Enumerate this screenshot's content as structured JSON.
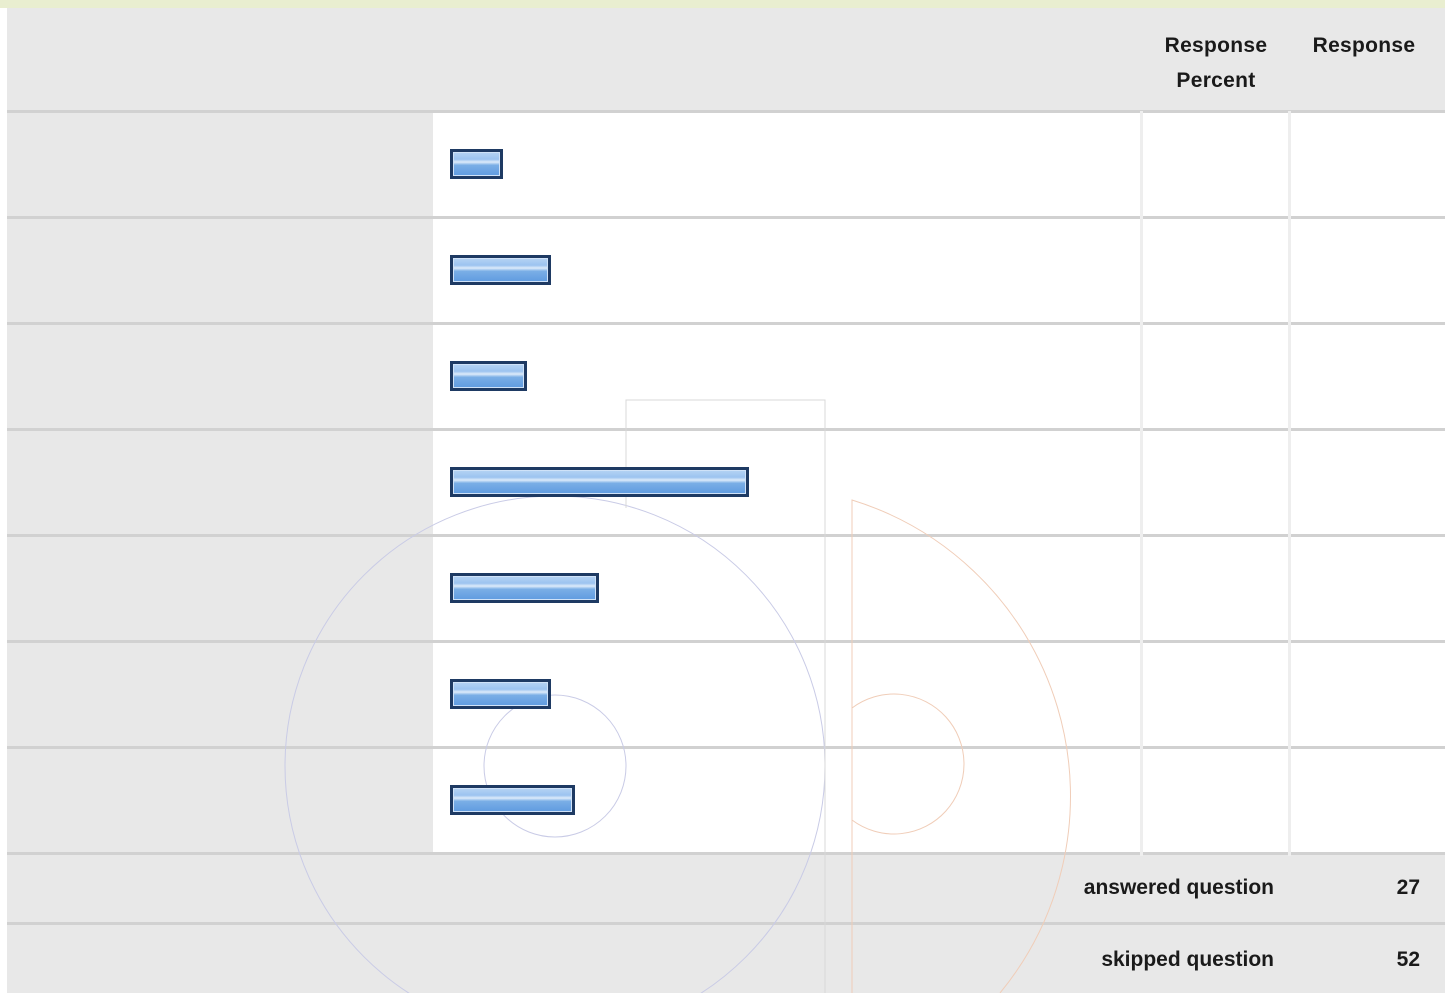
{
  "chart_data": {
    "type": "bar",
    "orientation": "horizontal",
    "categories": [
      "",
      "",
      "",
      "",
      "",
      "",
      ""
    ],
    "values": [
      11,
      21,
      16,
      62,
      31,
      21,
      26
    ],
    "columns": [
      "Response Percent",
      "Response"
    ],
    "xlim": [
      0,
      205
    ]
  },
  "summary": {
    "answered_label": "answered question",
    "answered_value": "27",
    "skipped_label": "skipped question",
    "skipped_value": "52"
  },
  "colors": {
    "bar_border": "#1e3a63",
    "bar_fill": "#7aaee6",
    "row_bg": "#e8e8e8",
    "top_strip": "#e9eed0"
  }
}
